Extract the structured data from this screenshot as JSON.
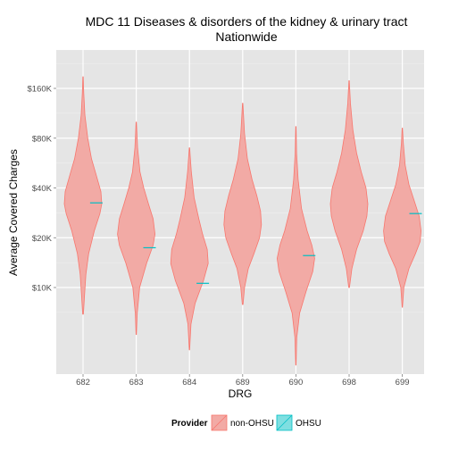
{
  "chart_data": {
    "type": "violin",
    "title": "MDC 11 Diseases & disorders of the kidney & urinary tract",
    "subtitle": "Nationwide",
    "xlabel": "DRG",
    "ylabel": "Average Covered Charges",
    "y_scale": "log10",
    "y_ticks": [
      {
        "value": 10000,
        "label": "$10K"
      },
      {
        "value": 20000,
        "label": "$20K"
      },
      {
        "value": 40000,
        "label": "$40K"
      },
      {
        "value": 80000,
        "label": "$80K"
      },
      {
        "value": 160000,
        "label": "$160K"
      }
    ],
    "categories": [
      "682",
      "683",
      "684",
      "689",
      "690",
      "698",
      "699"
    ],
    "legend": {
      "title": "Provider",
      "position": "bottom",
      "entries": [
        "non-OHSU",
        "OHSU"
      ]
    },
    "colors": {
      "non-OHSU_fill": "#f2aaa5",
      "non-OHSU_line": "#f8766d",
      "OHSU": "#00bfc4",
      "panel": "#e5e5e5",
      "grid": "#ffffff"
    },
    "series": [
      {
        "name": "non-OHSU",
        "violins": [
          {
            "category": "682",
            "min": 6900,
            "max": 188000,
            "profile": [
              [
                6900,
                0.02
              ],
              [
                9000,
                0.08
              ],
              [
                12000,
                0.15
              ],
              [
                16000,
                0.3
              ],
              [
                22000,
                0.6
              ],
              [
                28000,
                0.9
              ],
              [
                32000,
                1.0
              ],
              [
                38000,
                0.95
              ],
              [
                48000,
                0.7
              ],
              [
                60000,
                0.45
              ],
              [
                80000,
                0.25
              ],
              [
                110000,
                0.1
              ],
              [
                150000,
                0.04
              ],
              [
                188000,
                0.01
              ]
            ]
          },
          {
            "category": "683",
            "min": 5200,
            "max": 100000,
            "profile": [
              [
                5200,
                0.01
              ],
              [
                7000,
                0.05
              ],
              [
                10000,
                0.18
              ],
              [
                14000,
                0.55
              ],
              [
                18000,
                0.9
              ],
              [
                21000,
                1.0
              ],
              [
                26000,
                0.9
              ],
              [
                32000,
                0.65
              ],
              [
                40000,
                0.4
              ],
              [
                50000,
                0.2
              ],
              [
                70000,
                0.07
              ],
              [
                100000,
                0.01
              ]
            ]
          },
          {
            "category": "684",
            "min": 4200,
            "max": 70000,
            "profile": [
              [
                4200,
                0.01
              ],
              [
                6000,
                0.08
              ],
              [
                8000,
                0.3
              ],
              [
                11000,
                0.75
              ],
              [
                14000,
                1.0
              ],
              [
                17000,
                0.95
              ],
              [
                21000,
                0.7
              ],
              [
                26000,
                0.5
              ],
              [
                35000,
                0.25
              ],
              [
                50000,
                0.1
              ],
              [
                70000,
                0.01
              ]
            ]
          },
          {
            "category": "689",
            "min": 7900,
            "max": 130000,
            "profile": [
              [
                7900,
                0.02
              ],
              [
                10000,
                0.1
              ],
              [
                13000,
                0.3
              ],
              [
                16000,
                0.6
              ],
              [
                20000,
                0.9
              ],
              [
                24000,
                1.0
              ],
              [
                29000,
                0.95
              ],
              [
                36000,
                0.75
              ],
              [
                45000,
                0.5
              ],
              [
                60000,
                0.25
              ],
              [
                85000,
                0.1
              ],
              [
                130000,
                0.01
              ]
            ]
          },
          {
            "category": "690",
            "min": 3400,
            "max": 94000,
            "profile": [
              [
                3400,
                0.01
              ],
              [
                5000,
                0.05
              ],
              [
                7000,
                0.2
              ],
              [
                9500,
                0.55
              ],
              [
                12500,
                0.9
              ],
              [
                15000,
                1.0
              ],
              [
                18000,
                0.85
              ],
              [
                22000,
                0.6
              ],
              [
                30000,
                0.3
              ],
              [
                45000,
                0.12
              ],
              [
                65000,
                0.04
              ],
              [
                94000,
                0.01
              ]
            ]
          },
          {
            "category": "698",
            "min": 10000,
            "max": 178000,
            "profile": [
              [
                10000,
                0.02
              ],
              [
                13000,
                0.15
              ],
              [
                17000,
                0.4
              ],
              [
                22000,
                0.75
              ],
              [
                27000,
                0.95
              ],
              [
                32000,
                1.0
              ],
              [
                40000,
                0.9
              ],
              [
                50000,
                0.65
              ],
              [
                65000,
                0.4
              ],
              [
                90000,
                0.2
              ],
              [
                130000,
                0.07
              ],
              [
                178000,
                0.01
              ]
            ]
          },
          {
            "category": "699",
            "min": 7600,
            "max": 92000,
            "profile": [
              [
                7600,
                0.01
              ],
              [
                10000,
                0.08
              ],
              [
                13000,
                0.35
              ],
              [
                16000,
                0.7
              ],
              [
                19000,
                0.95
              ],
              [
                22000,
                1.0
              ],
              [
                27000,
                0.9
              ],
              [
                33000,
                0.65
              ],
              [
                42000,
                0.35
              ],
              [
                55000,
                0.15
              ],
              [
                75000,
                0.05
              ],
              [
                92000,
                0.01
              ]
            ]
          }
        ]
      },
      {
        "name": "OHSU",
        "values": [
          {
            "category": "682",
            "value": 32500
          },
          {
            "category": "683",
            "value": 17400
          },
          {
            "category": "684",
            "value": 10600
          },
          {
            "category": "689",
            "value": null
          },
          {
            "category": "690",
            "value": 15600
          },
          {
            "category": "698",
            "value": null
          },
          {
            "category": "699",
            "value": 28000
          }
        ]
      }
    ]
  }
}
